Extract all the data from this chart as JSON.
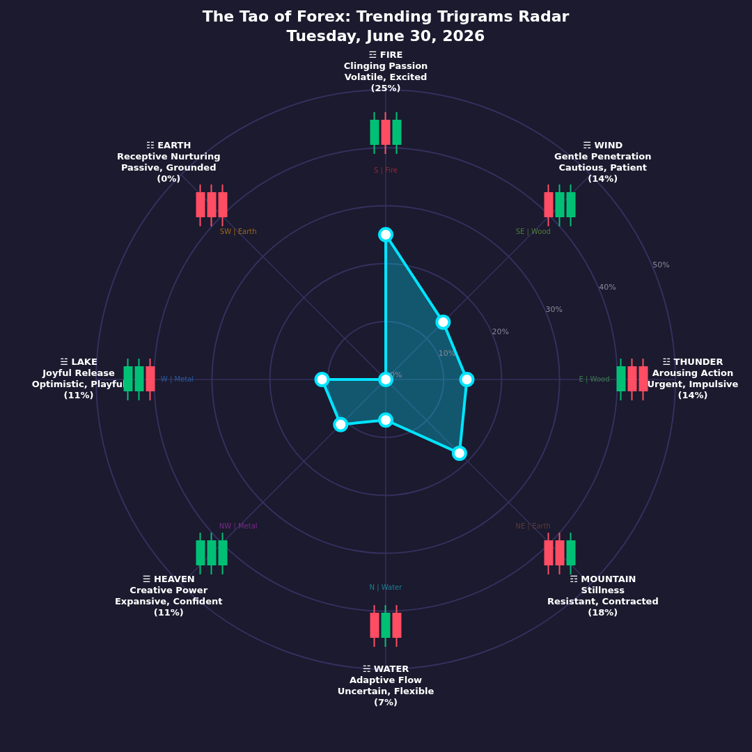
{
  "chart_data": {
    "type": "radar",
    "title": "The Tao of Forex: Trending Trigrams Radar",
    "subtitle": "Tuesday, June 30, 2026",
    "categories": [
      "☲ FIRE\nClinging Passion\nVolatile, Excited\n(25%)",
      "☴ WIND\nGentle Penetration\nCautious, Patient\n(14%)",
      "☳ THUNDER\nArousing Action\nUrgent, Impulsive\n(14%)",
      "☶ MOUNTAIN\nStillness\nResistant, Contracted\n(18%)",
      "☵ WATER\nAdaptive Flow\nUncertain, Flexible\n(7%)",
      "☰ HEAVEN\nCreative Power\nExpansive, Confident\n(11%)",
      "☱ LAKE\nJoyful Release\nOptimistic, Playful\n(11%)",
      "☷ EARTH\nReceptive Nurturing\nPassive, Grounded\n(0%)"
    ],
    "series": [
      {
        "color": "#00e5ff",
        "values": [
          25,
          14,
          14,
          18,
          7,
          11,
          11,
          0
        ]
      }
    ],
    "ylim": [
      0,
      50
    ],
    "yticks": [
      {
        "value": 0,
        "label": "0%"
      },
      {
        "value": 10,
        "label": "10%"
      },
      {
        "value": 20,
        "label": "20%"
      },
      {
        "value": 30,
        "label": "30%"
      },
      {
        "value": 40,
        "label": "40%"
      },
      {
        "value": 50,
        "label": "50%"
      }
    ],
    "grid": true,
    "marker": "circle",
    "annotations": [
      "S | Fire",
      "SE | Wood",
      "E | Wood",
      "NE | Earth",
      "N | Water",
      "NW | Metal",
      "W | Metal",
      "SW | Earth"
    ]
  }
}
